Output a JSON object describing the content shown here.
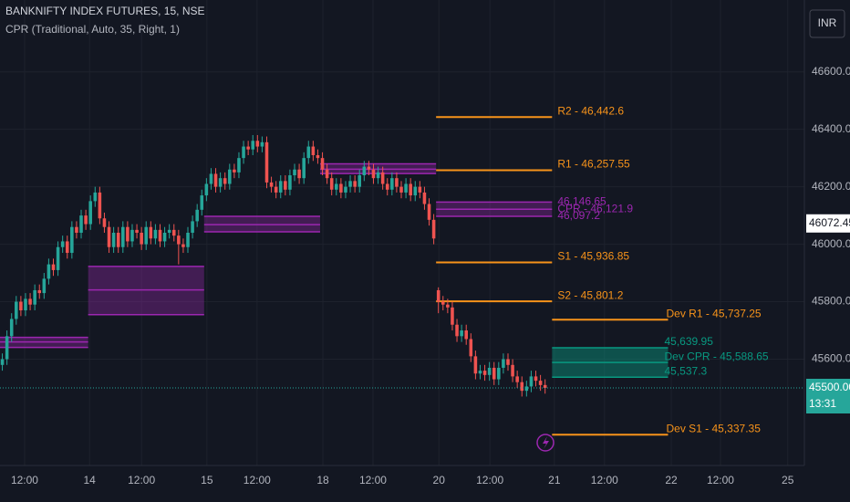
{
  "header": {
    "symbol": "BANKNIFTY INDEX FUTURES, 15, NSE",
    "indicator": "CPR (Traditional, Auto, 35, Right, 1)",
    "currency": "INR"
  },
  "chart_data": {
    "type": "candlestick",
    "up_color": "#26a69a",
    "down_color": "#ef5350",
    "grid": true,
    "xlim": [
      0,
      173
    ],
    "xticks": [
      {
        "value": 5.3,
        "label": "12:00"
      },
      {
        "value": 19.3,
        "label": "14"
      },
      {
        "value": 30.5,
        "label": "12:00"
      },
      {
        "value": 44.6,
        "label": "15"
      },
      {
        "value": 55.4,
        "label": "12:00"
      },
      {
        "value": 69.6,
        "label": "18"
      },
      {
        "value": 80.4,
        "label": "12:00"
      },
      {
        "value": 94.6,
        "label": "20"
      },
      {
        "value": 105.6,
        "label": "12:00"
      },
      {
        "value": 119.5,
        "label": "21"
      },
      {
        "value": 130.3,
        "label": "12:00"
      },
      {
        "value": 144.7,
        "label": "22"
      },
      {
        "value": 155.3,
        "label": "12:00"
      },
      {
        "value": 169.8,
        "label": "25"
      }
    ],
    "ylim": [
      45230,
      46850
    ],
    "yticks": [
      {
        "value": 45600,
        "label": "45600.00"
      },
      {
        "value": 45800,
        "label": "45800.00"
      },
      {
        "value": 46000,
        "label": "46000.00"
      },
      {
        "value": 46200,
        "label": "46200.00"
      },
      {
        "value": 46400,
        "label": "46400.00"
      },
      {
        "value": 46600,
        "label": "46600.00"
      }
    ],
    "candles": [
      [
        45580,
        45620,
        45560,
        45600
      ],
      [
        45600,
        45700,
        45580,
        45680
      ],
      [
        45680,
        45760,
        45660,
        45740
      ],
      [
        45740,
        45820,
        45720,
        45800
      ],
      [
        45800,
        45820,
        45750,
        45770
      ],
      [
        45770,
        45830,
        45750,
        45810
      ],
      [
        45810,
        45830,
        45770,
        45790
      ],
      [
        45790,
        45860,
        45770,
        45840
      ],
      [
        45840,
        45860,
        45810,
        45830
      ],
      [
        45830,
        45900,
        45810,
        45880
      ],
      [
        45880,
        45950,
        45860,
        45930
      ],
      [
        45930,
        45950,
        45890,
        45910
      ],
      [
        45910,
        46010,
        45890,
        45990
      ],
      [
        45990,
        46030,
        45970,
        46010
      ],
      [
        46010,
        46030,
        45950,
        45970
      ],
      [
        45970,
        46080,
        45950,
        46060
      ],
      [
        46060,
        46080,
        46020,
        46040
      ],
      [
        46040,
        46120,
        46020,
        46100
      ],
      [
        46100,
        46120,
        46050,
        46070
      ],
      [
        46070,
        46170,
        46050,
        46150
      ],
      [
        46150,
        46200,
        46130,
        46180
      ],
      [
        46180,
        46200,
        46070,
        46090
      ],
      [
        46090,
        46110,
        46040,
        46060
      ],
      [
        46060,
        46080,
        45970,
        45990
      ],
      [
        45990,
        46060,
        45970,
        46040
      ],
      [
        46040,
        46060,
        45970,
        45990
      ],
      [
        45990,
        46080,
        45970,
        46060
      ],
      [
        46060,
        46080,
        45990,
        46010
      ],
      [
        46010,
        46070,
        45990,
        46050
      ],
      [
        46050,
        46070,
        46020,
        46040
      ],
      [
        46040,
        46060,
        45980,
        46000
      ],
      [
        46000,
        46080,
        45980,
        46060
      ],
      [
        46060,
        46080,
        46000,
        46020
      ],
      [
        46020,
        46070,
        46000,
        46050
      ],
      [
        46050,
        46070,
        45990,
        46010
      ],
      [
        46010,
        46060,
        45990,
        46040
      ],
      [
        46040,
        46070,
        46020,
        46050
      ],
      [
        46050,
        46070,
        46010,
        46030
      ],
      [
        46030,
        46050,
        45930,
        46000
      ],
      [
        46000,
        46020,
        45970,
        45990
      ],
      [
        45990,
        46060,
        45970,
        46040
      ],
      [
        46040,
        46100,
        46020,
        46080
      ],
      [
        46080,
        46140,
        46060,
        46120
      ],
      [
        46120,
        46190,
        46100,
        46170
      ],
      [
        46170,
        46230,
        46150,
        46210
      ],
      [
        46210,
        46265,
        46190,
        46245
      ],
      [
        46245,
        46265,
        46180,
        46200
      ],
      [
        46200,
        46250,
        46180,
        46230
      ],
      [
        46230,
        46250,
        46190,
        46210
      ],
      [
        46210,
        46280,
        46190,
        46260
      ],
      [
        46260,
        46280,
        46230,
        46250
      ],
      [
        46250,
        46320,
        46230,
        46300
      ],
      [
        46300,
        46360,
        46280,
        46340
      ],
      [
        46340,
        46360,
        46310,
        46330
      ],
      [
        46330,
        46380,
        46310,
        46360
      ],
      [
        46360,
        46380,
        46320,
        46340
      ],
      [
        46340,
        46375,
        46320,
        46355
      ],
      [
        46355,
        46375,
        46195,
        46215
      ],
      [
        46215,
        46235,
        46180,
        46200
      ],
      [
        46200,
        46220,
        46160,
        46180
      ],
      [
        46180,
        46240,
        46160,
        46220
      ],
      [
        46220,
        46240,
        46170,
        46190
      ],
      [
        46190,
        46260,
        46170,
        46240
      ],
      [
        46240,
        46280,
        46220,
        46260
      ],
      [
        46260,
        46280,
        46210,
        46230
      ],
      [
        46230,
        46320,
        46210,
        46300
      ],
      [
        46300,
        46360,
        46280,
        46340
      ],
      [
        46340,
        46360,
        46290,
        46310
      ],
      [
        46310,
        46330,
        46280,
        46300
      ],
      [
        46300,
        46320,
        46240,
        46260
      ],
      [
        46260,
        46280,
        46210,
        46230
      ],
      [
        46230,
        46250,
        46170,
        46190
      ],
      [
        46190,
        46230,
        46170,
        46210
      ],
      [
        46210,
        46230,
        46160,
        46180
      ],
      [
        46180,
        46220,
        46160,
        46200
      ],
      [
        46200,
        46240,
        46180,
        46220
      ],
      [
        46220,
        46240,
        46180,
        46200
      ],
      [
        46200,
        46260,
        46180,
        46240
      ],
      [
        46240,
        46290,
        46220,
        46270
      ],
      [
        46270,
        46290,
        46240,
        46260
      ],
      [
        46260,
        46280,
        46210,
        46230
      ],
      [
        46230,
        46270,
        46210,
        46250
      ],
      [
        46250,
        46270,
        46190,
        46210
      ],
      [
        46210,
        46230,
        46170,
        46190
      ],
      [
        46190,
        46250,
        46170,
        46230
      ],
      [
        46230,
        46250,
        46180,
        46200
      ],
      [
        46200,
        46220,
        46160,
        46180
      ],
      [
        46180,
        46230,
        46160,
        46210
      ],
      [
        46210,
        46230,
        46150,
        46170
      ],
      [
        46170,
        46220,
        46150,
        46200
      ],
      [
        46200,
        46220,
        46160,
        46180
      ],
      [
        46180,
        46200,
        46120,
        46140
      ],
      [
        46140,
        46160,
        46065,
        46085
      ],
      [
        46085,
        46105,
        46000,
        46020
      ],
      [
        45840,
        45850,
        45760,
        45800
      ],
      [
        45800,
        45820,
        45770,
        45790
      ],
      [
        45790,
        45810,
        45760,
        45780
      ],
      [
        45780,
        45800,
        45700,
        45720
      ],
      [
        45720,
        45740,
        45660,
        45680
      ],
      [
        45680,
        45720,
        45660,
        45700
      ],
      [
        45700,
        45720,
        45650,
        45670
      ],
      [
        45670,
        45690,
        45590,
        45610
      ],
      [
        45610,
        45630,
        45530,
        45550
      ],
      [
        45550,
        45580,
        45530,
        45560
      ],
      [
        45560,
        45580,
        45525,
        45545
      ],
      [
        45545,
        45590,
        45525,
        45570
      ],
      [
        45570,
        45590,
        45510,
        45530
      ],
      [
        45530,
        45590,
        45510,
        45570
      ],
      [
        45570,
        45620,
        45550,
        45600
      ],
      [
        45600,
        45620,
        45560,
        45580
      ],
      [
        45580,
        45600,
        45520,
        45540
      ],
      [
        45540,
        45560,
        45500,
        45520
      ],
      [
        45520,
        45540,
        45470,
        45490
      ],
      [
        45490,
        45525,
        45470,
        45505
      ],
      [
        45505,
        45560,
        45485,
        45540
      ],
      [
        45540,
        45560,
        45505,
        45525
      ],
      [
        45525,
        45545,
        45490,
        45510
      ],
      [
        45510,
        45530,
        45480,
        45500
      ]
    ],
    "cpr_color": "#9c27b0",
    "cpr_bands": [
      {
        "range": [
          0,
          19
        ],
        "top": 45676,
        "pivot": 45660,
        "bottom": 45641
      },
      {
        "range": [
          19,
          44
        ],
        "top": 45923,
        "pivot": 45841,
        "bottom": 45755
      },
      {
        "range": [
          44,
          69
        ],
        "top": 46097,
        "pivot": 46068,
        "bottom": 46043
      },
      {
        "range": [
          69,
          94
        ],
        "top": 46280,
        "pivot": 46261,
        "bottom": 46246
      },
      {
        "range": [
          94,
          119
        ],
        "top": {
          "value": 46146.65,
          "label": "46,146.65"
        },
        "pivot": {
          "value": 46121.9,
          "label": "CPR - 46,121.9"
        },
        "bottom": {
          "value": 46097.2,
          "label": "46,097.2"
        }
      }
    ],
    "level_color": "#f7931a",
    "levels": [
      {
        "range": [
          94,
          119
        ],
        "value": 46442.6,
        "label": "R2 - 46,442.6"
      },
      {
        "range": [
          94,
          119
        ],
        "value": 46257.55,
        "label": "R1 - 46,257.55"
      },
      {
        "range": [
          94,
          119
        ],
        "value": 45936.85,
        "label": "S1 - 45,936.85"
      },
      {
        "range": [
          94,
          119
        ],
        "value": 45801.2,
        "label": "S2 - 45,801.2"
      },
      {
        "range": [
          119,
          144
        ],
        "value": 45737.25,
        "label": "Dev R1 - 45,737.25"
      },
      {
        "range": [
          119,
          144
        ],
        "value": 45337.35,
        "label": "Dev S1 - 45,337.35"
      }
    ],
    "dev_cpr": {
      "range": [
        119,
        144
      ],
      "color": "#089981",
      "top": {
        "value": 45639.95,
        "label": "45,639.95"
      },
      "pivot": {
        "value": 45588.65,
        "label": "Dev CPR - 45,588.65"
      },
      "bottom": {
        "value": 45537.3,
        "label": "45,537.3"
      }
    },
    "price_labels": [
      {
        "value": 46072.45,
        "label": "46072.45"
      },
      {
        "value": 45500,
        "label": "45500.00",
        "countdown": "13:31"
      }
    ]
  }
}
